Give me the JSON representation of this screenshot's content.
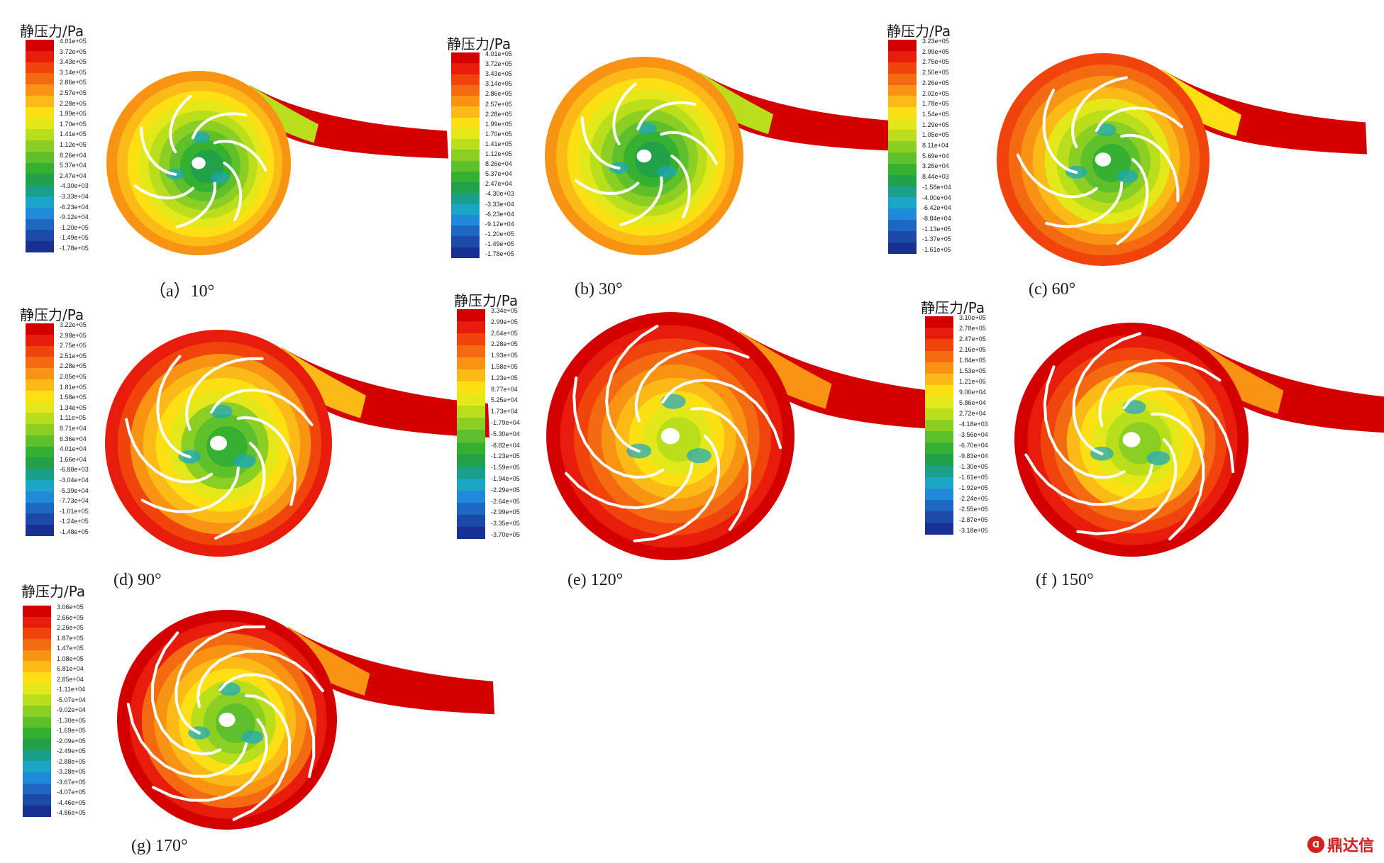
{
  "colormap": [
    "#d40000",
    "#e81c0a",
    "#f0440c",
    "#f46a10",
    "#f99314",
    "#fcba16",
    "#fde014",
    "#e4e818",
    "#b8de1c",
    "#8ccf24",
    "#5ec02a",
    "#36b030",
    "#22a04a",
    "#1c9f8a",
    "#1aa6c4",
    "#1e8ad8",
    "#1e68c4",
    "#1c4aa8",
    "#183090"
  ],
  "panels": [
    {
      "caption": "（a）10°",
      "legend_title": "静压力/Pa",
      "color_stops": [
        "4.01e+05",
        "3.72e+05",
        "3.43e+05",
        "3.14e+05",
        "2.86e+05",
        "2.57e+05",
        "2.28e+05",
        "1.99e+05",
        "1.70e+05",
        "1.41e+05",
        "1.12e+05",
        "8.26e+04",
        "5.37e+04",
        "2.47e+04",
        "-4.30e+03",
        "-3.33e+04",
        "-6.23e+04",
        "-9.12e+04",
        "-1.20e+05",
        "-1.49e+05",
        "-1.78e+05"
      ]
    },
    {
      "caption": "(b)  30°",
      "legend_title": "静压力/Pa",
      "color_stops": [
        "4.01e+05",
        "3.72e+05",
        "3.43e+05",
        "3.14e+05",
        "2.86e+05",
        "2.57e+05",
        "2.28e+05",
        "1.99e+05",
        "1.70e+05",
        "1.41e+05",
        "1.12e+05",
        "8.26e+04",
        "5.37e+04",
        "2.47e+04",
        "-4.30e+03",
        "-3.33e+04",
        "-6.23e+04",
        "-9.12e+04",
        "-1.20e+05",
        "-1.49e+05",
        "-1.78e+05"
      ]
    },
    {
      "caption": "(c)  60°",
      "legend_title": "静压力/Pa",
      "color_stops": [
        "3.23e+05",
        "2.99e+05",
        "2.75e+05",
        "2.50e+05",
        "2.26e+05",
        "2.02e+05",
        "1.78e+05",
        "1.54e+05",
        "1.29e+05",
        "1.05e+05",
        "8.11e+04",
        "5.69e+04",
        "3.26e+04",
        "8.44e+03",
        "-1.58e+04",
        "-4.00e+04",
        "-6.42e+04",
        "-8.84e+04",
        "-1.13e+05",
        "-1.37e+05",
        "-1.61e+05"
      ]
    },
    {
      "caption": "(d)  90°",
      "legend_title": "静压力/Pa",
      "color_stops": [
        "3.22e+05",
        "2.98e+05",
        "2.75e+05",
        "2.51e+05",
        "2.28e+05",
        "2.05e+05",
        "1.81e+05",
        "1.58e+05",
        "1.34e+05",
        "1.11e+05",
        "8.71e+04",
        "6.36e+04",
        "4.01e+04",
        "1.66e+04",
        "-6.88e+03",
        "-3.04e+04",
        "-5.39e+04",
        "-7.73e+04",
        "-1.01e+05",
        "-1.24e+05",
        "-1.48e+05"
      ]
    },
    {
      "caption": "(e)  120°",
      "legend_title": "静压力/Pa",
      "color_stops": [
        "3.34e+05",
        "2.99e+05",
        "2.64e+05",
        "2.28e+05",
        "1.93e+05",
        "1.58e+05",
        "1.23e+05",
        "8.77e+04",
        "5.25e+04",
        "1.73e+04",
        "-1.79e+04",
        "-5.30e+04",
        "-8.82e+04",
        "-1.23e+05",
        "-1.59e+05",
        "-1.94e+05",
        "-2.29e+05",
        "-2.64e+05",
        "-2.99e+05",
        "-3.35e+05",
        "-3.70e+05"
      ]
    },
    {
      "caption": "(f ) 150°",
      "legend_title": "静压力/Pa",
      "color_stops": [
        "3.10e+05",
        "2.78e+05",
        "2.47e+05",
        "2.16e+05",
        "1.84e+05",
        "1.53e+05",
        "1.21e+05",
        "9.00e+04",
        "5.86e+04",
        "2.72e+04",
        "-4.18e+03",
        "-3.56e+04",
        "-6.70e+04",
        "-9.83e+04",
        "-1.30e+05",
        "-1.61e+05",
        "-1.92e+05",
        "-2.24e+05",
        "-2.55e+05",
        "-2.87e+05",
        "-3.18e+05"
      ]
    },
    {
      "caption": "(g)  170°",
      "legend_title": "静压力/Pa",
      "color_stops": [
        "3.06e+05",
        "2.66e+05",
        "2.26e+05",
        "1.87e+05",
        "1.47e+05",
        "1.08e+05",
        "6.81e+04",
        "2.85e+04",
        "-1.11e+04",
        "-5.07e+04",
        "-9.02e+04",
        "-1.30e+05",
        "-1.69e+05",
        "-2.09e+05",
        "-2.49e+05",
        "-2.88e+05",
        "-3.28e+05",
        "-3.67e+05",
        "-4.07e+05",
        "-4.46e+05",
        "-4.86e+05"
      ]
    }
  ],
  "watermark": {
    "logo_text": "ᗡ",
    "text": "鼎达信"
  }
}
